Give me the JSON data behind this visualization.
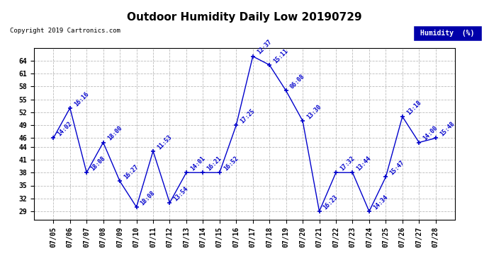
{
  "title": "Outdoor Humidity Daily Low 20190729",
  "copyright": "Copyright 2019 Cartronics.com",
  "legend_label": "Humidity  (%)",
  "dates": [
    "07/05",
    "07/06",
    "07/07",
    "07/08",
    "07/09",
    "07/10",
    "07/11",
    "07/12",
    "07/13",
    "07/14",
    "07/15",
    "07/16",
    "07/17",
    "07/18",
    "07/19",
    "07/20",
    "07/21",
    "07/22",
    "07/23",
    "07/24",
    "07/25",
    "07/26",
    "07/27",
    "07/28"
  ],
  "values": [
    46,
    53,
    38,
    45,
    36,
    30,
    43,
    31,
    38,
    38,
    38,
    49,
    65,
    63,
    57,
    50,
    29,
    38,
    38,
    29,
    37,
    51,
    45,
    46
  ],
  "times": [
    "14:02",
    "16:16",
    "18:08",
    "18:00",
    "16:27",
    "18:08",
    "11:53",
    "13:54",
    "14:01",
    "16:21",
    "16:52",
    "17:25",
    "12:37",
    "15:11",
    "06:08",
    "13:30",
    "16:23",
    "17:32",
    "13:44",
    "14:34",
    "15:47",
    "13:18",
    "14:00",
    "15:48"
  ],
  "line_color": "#0000cc",
  "bg_color": "#ffffff",
  "plot_bg_color": "#ffffff",
  "grid_color": "#bbbbbb",
  "ylim": [
    27,
    67
  ],
  "yticks": [
    29,
    32,
    35,
    38,
    41,
    44,
    46,
    49,
    52,
    55,
    58,
    61,
    64
  ],
  "title_fontsize": 11,
  "annotation_fontsize": 6,
  "tick_fontsize": 7,
  "legend_bg": "#0000aa",
  "legend_fg": "#ffffff"
}
